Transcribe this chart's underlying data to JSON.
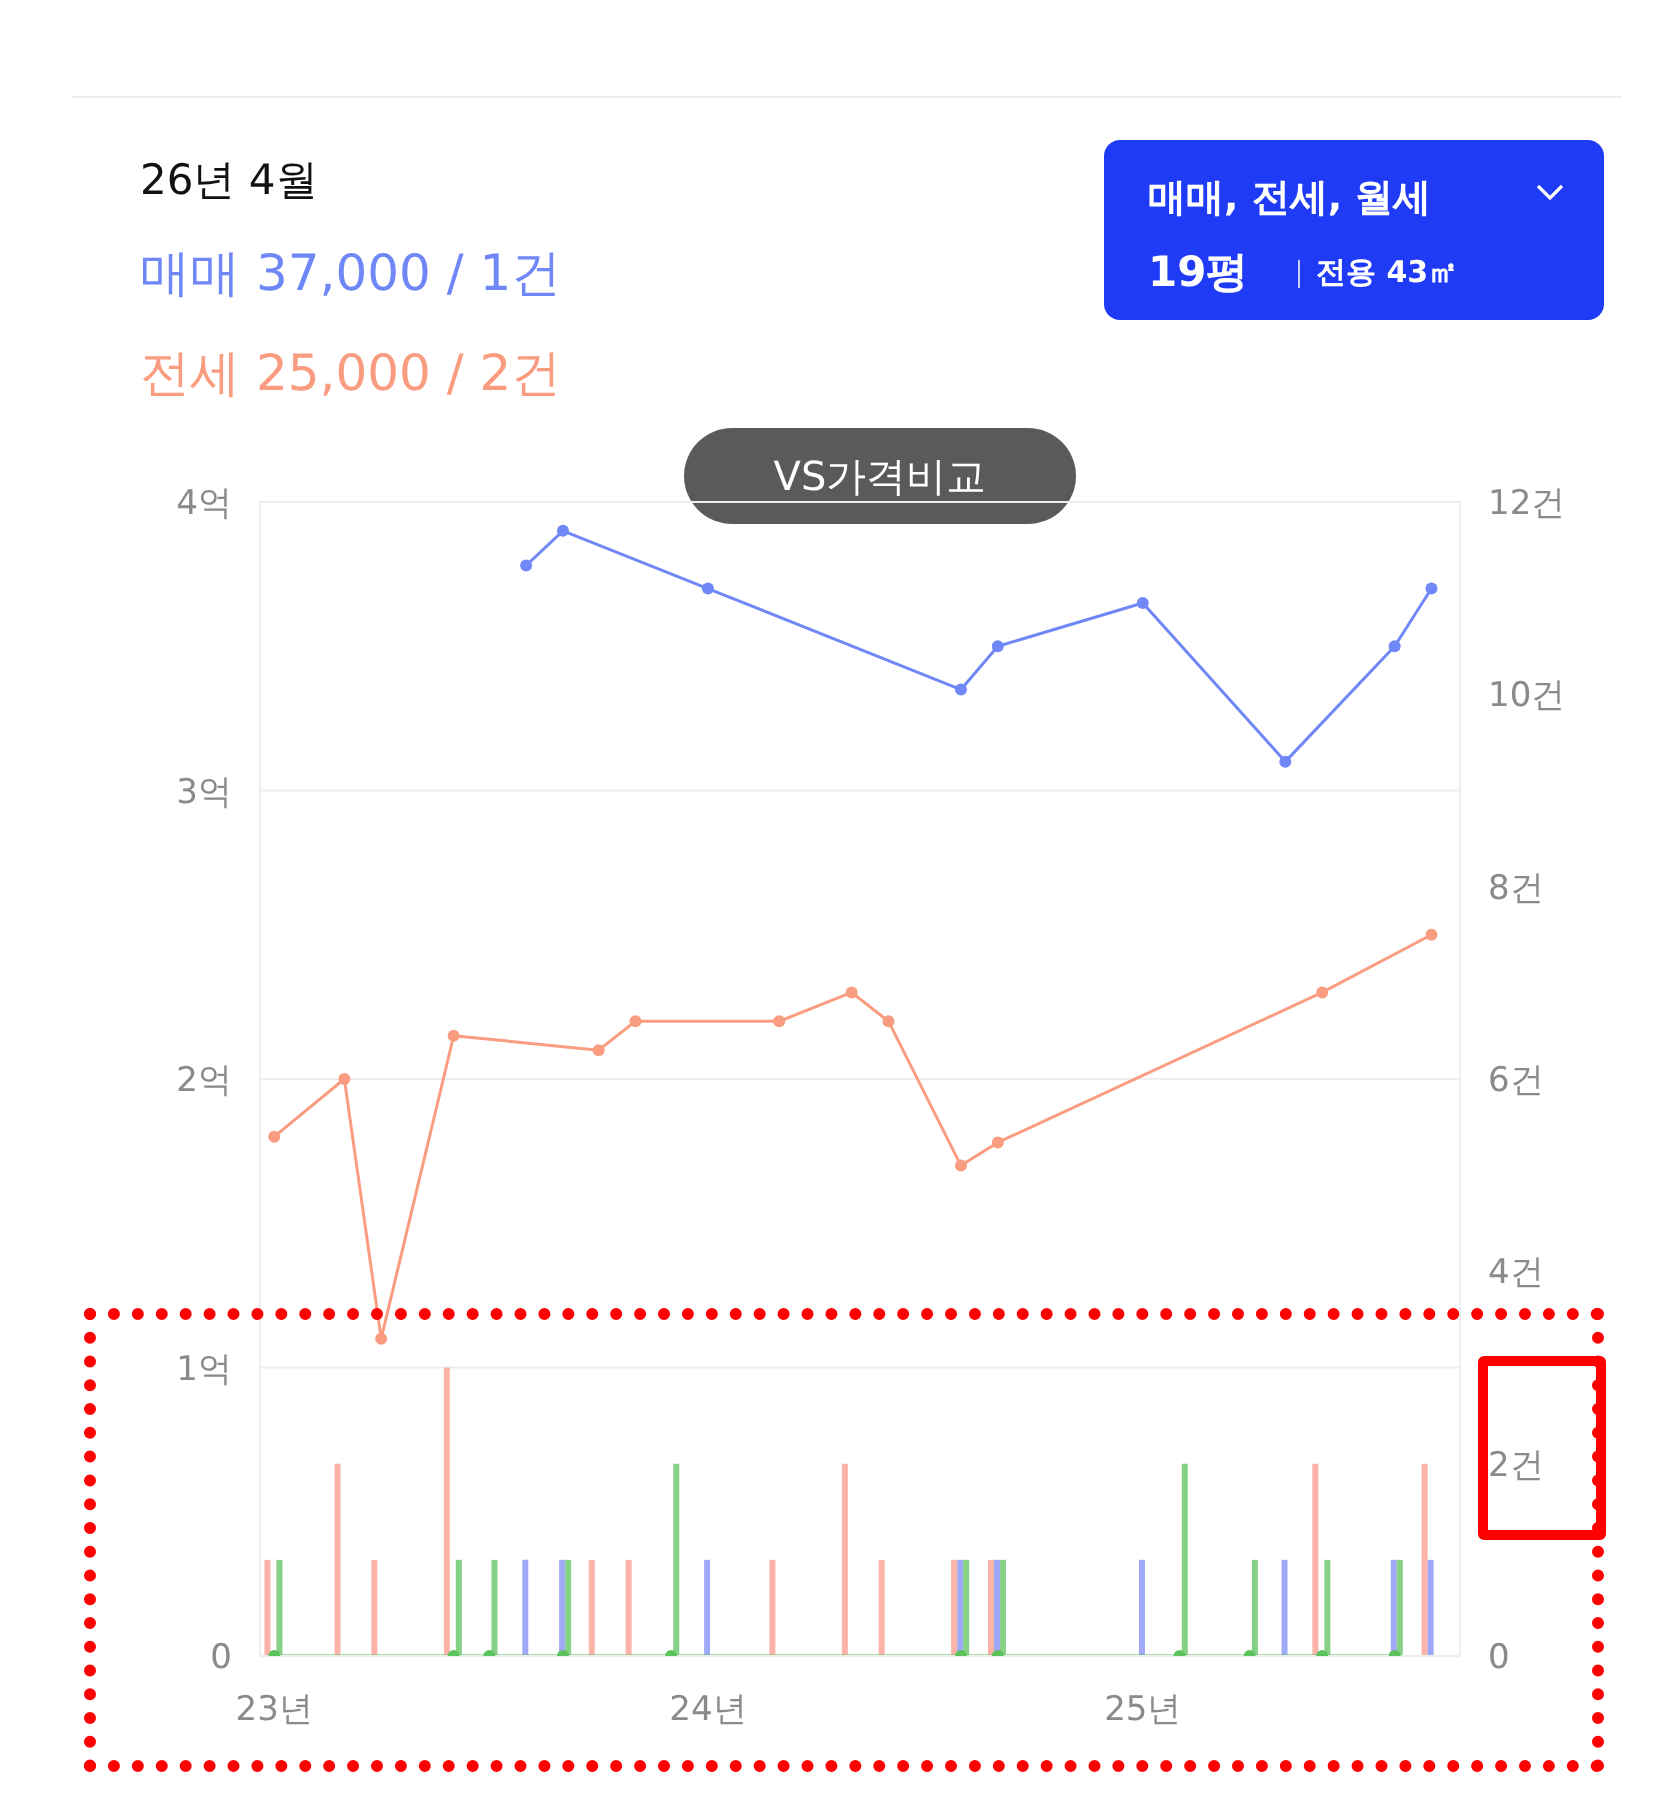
{
  "chart_data": {
    "type": "line",
    "title": "26년 4월",
    "annotations": [
      "매매 37,000 / 1건",
      "전세 25,000 / 2건",
      "매매, 전세, 월세",
      "19평",
      "전용 43㎡",
      "VS가격비교"
    ],
    "series": [
      {
        "color": "#7088f7",
        "x": [
          "2023-08",
          "2023-09",
          "2024-01",
          "2024-08",
          "2024-09",
          "2025-01",
          "2025-05",
          "2025-08",
          "2025-09"
        ],
        "values": [
          3.78,
          3.9,
          3.7,
          3.35,
          3.5,
          3.65,
          3.1,
          3.5,
          3.7
        ]
      },
      {
        "color": "#fa9c80",
        "x": [
          "2023-01",
          "2023-03",
          "2023-04",
          "2023-06",
          "2023-10",
          "2023-11",
          "2024-03",
          "2024-05",
          "2024-06",
          "2024-08",
          "2024-09",
          "2025-06",
          "2025-09"
        ],
        "values": [
          1.8,
          2.0,
          1.1,
          2.15,
          2.1,
          2.2,
          2.2,
          2.3,
          2.2,
          1.7,
          1.78,
          2.3,
          2.5
        ]
      },
      {
        "color": "#5cc25c",
        "x": [
          "2023-01",
          "2023-06",
          "2023-07",
          "2023-09",
          "2023-12",
          "2024-08",
          "2024-09",
          "2025-02",
          "2025-04",
          "2025-06",
          "2025-08"
        ],
        "values": [
          0,
          0,
          0,
          0,
          0,
          0,
          0,
          0,
          0,
          0,
          0
        ]
      },
      {
        "type": "bar",
        "axis": "y2",
        "color": "#fcb3a8",
        "x": [
          "2023-01",
          "2023-03",
          "2023-04",
          "2023-06",
          "2023-10",
          "2023-11",
          "2024-03",
          "2024-05",
          "2024-06",
          "2024-08",
          "2024-09",
          "2025-06",
          "2025-09"
        ],
        "values": [
          1,
          2,
          1,
          3,
          1,
          1,
          1,
          2,
          1,
          1,
          1,
          2,
          2
        ]
      },
      {
        "type": "bar",
        "axis": "y2",
        "color": "#9fa9f8",
        "x": [
          "2023-08",
          "2023-09",
          "2024-01",
          "2024-08",
          "2024-09",
          "2025-01",
          "2025-05",
          "2025-08",
          "2025-09"
        ],
        "values": [
          1,
          1,
          1,
          1,
          1,
          1,
          1,
          1,
          1
        ]
      },
      {
        "type": "bar",
        "axis": "y2",
        "color": "#86d186",
        "x": [
          "2023-01",
          "2023-06",
          "2023-07",
          "2023-09",
          "2023-12",
          "2024-08",
          "2024-09",
          "2025-02",
          "2025-04",
          "2025-06",
          "2025-08"
        ],
        "values": [
          1,
          1,
          1,
          1,
          2,
          1,
          1,
          2,
          1,
          1,
          1
        ]
      }
    ],
    "xlim": [
      "2022-12-20",
      "2025-09-25"
    ],
    "xticks": [
      {
        "value": "2023-01",
        "label": "23년"
      },
      {
        "value": "2024-01",
        "label": "24년"
      },
      {
        "value": "2025-01",
        "label": "25년"
      }
    ],
    "ylim": [
      0,
      4
    ],
    "yticks": [
      0,
      {
        "value": 1,
        "label": "1억"
      },
      {
        "value": 2,
        "label": "2억"
      },
      {
        "value": 3,
        "label": "3억"
      },
      {
        "value": 4,
        "label": "4억"
      }
    ],
    "y2lim": [
      0,
      12
    ],
    "y2ticks": [
      0,
      {
        "value": 2,
        "label": "2건"
      },
      {
        "value": 4,
        "label": "4건"
      },
      {
        "value": 6,
        "label": "6건"
      },
      {
        "value": 8,
        "label": "8건"
      },
      {
        "value": 10,
        "label": "10건"
      },
      {
        "value": 12,
        "label": "12건"
      }
    ],
    "grid": "y",
    "marker": "circle"
  }
}
